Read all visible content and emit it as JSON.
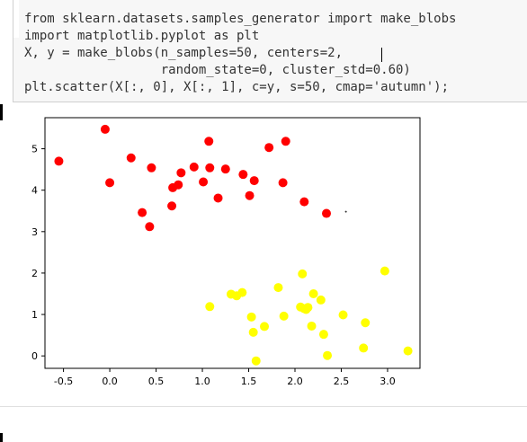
{
  "code_cell": {
    "lines": [
      "from sklearn.datasets.samples_generator import make_blobs",
      "import matplotlib.pyplot as plt",
      "X, y = make_blobs(n_samples=50, centers=2,",
      "                  random_state=0, cluster_std=0.60)",
      "plt.scatter(X[:, 0], X[:, 1], c=y, s=50, cmap='autumn');"
    ]
  },
  "chart_data": {
    "type": "scatter",
    "xlim": [
      -0.7,
      3.35
    ],
    "ylim": [
      -0.3,
      5.75
    ],
    "x_ticks": [
      -0.5,
      0.0,
      0.5,
      1.0,
      1.5,
      2.0,
      2.5,
      3.0
    ],
    "x_tick_labels": [
      "-0.5",
      "0.0",
      "0.5",
      "1.0",
      "1.5",
      "2.0",
      "2.5",
      "3.0"
    ],
    "y_ticks": [
      0,
      1,
      2,
      3,
      4,
      5
    ],
    "y_tick_labels": [
      "0",
      "1",
      "2",
      "3",
      "4",
      "5"
    ],
    "grid": false,
    "colormap": "autumn",
    "series": [
      {
        "color": "#ff0000",
        "points": [
          [
            -0.55,
            4.7
          ],
          [
            -0.05,
            5.47
          ],
          [
            0.0,
            4.18
          ],
          [
            0.23,
            4.78
          ],
          [
            0.35,
            3.46
          ],
          [
            0.43,
            3.12
          ],
          [
            0.45,
            4.54
          ],
          [
            0.67,
            3.62
          ],
          [
            0.68,
            4.06
          ],
          [
            0.74,
            4.13
          ],
          [
            0.77,
            4.42
          ],
          [
            0.91,
            4.56
          ],
          [
            1.01,
            4.2
          ],
          [
            1.07,
            5.18
          ],
          [
            1.08,
            4.54
          ],
          [
            1.17,
            3.81
          ],
          [
            1.25,
            4.51
          ],
          [
            1.44,
            4.38
          ],
          [
            1.51,
            3.87
          ],
          [
            1.56,
            4.23
          ],
          [
            1.72,
            5.03
          ],
          [
            1.87,
            4.18
          ],
          [
            1.9,
            5.18
          ],
          [
            2.1,
            3.72
          ],
          [
            2.34,
            3.44
          ]
        ]
      },
      {
        "color": "#ffff00",
        "points": [
          [
            1.08,
            1.19
          ],
          [
            1.31,
            1.49
          ],
          [
            1.37,
            1.45
          ],
          [
            1.43,
            1.53
          ],
          [
            1.53,
            0.94
          ],
          [
            1.55,
            0.57
          ],
          [
            1.58,
            -0.12
          ],
          [
            1.67,
            0.71
          ],
          [
            1.82,
            1.65
          ],
          [
            1.88,
            0.96
          ],
          [
            2.06,
            1.18
          ],
          [
            2.08,
            1.98
          ],
          [
            2.12,
            1.12
          ],
          [
            2.14,
            1.17
          ],
          [
            2.18,
            0.72
          ],
          [
            2.2,
            1.5
          ],
          [
            2.28,
            1.35
          ],
          [
            2.31,
            0.52
          ],
          [
            2.35,
            0.01
          ],
          [
            2.52,
            0.99
          ],
          [
            2.74,
            0.19
          ],
          [
            2.76,
            0.8
          ],
          [
            2.97,
            2.05
          ],
          [
            3.22,
            0.12
          ],
          [
            2.1,
            1.14
          ]
        ]
      }
    ],
    "stray_point": [
      2.55,
      3.48
    ]
  }
}
